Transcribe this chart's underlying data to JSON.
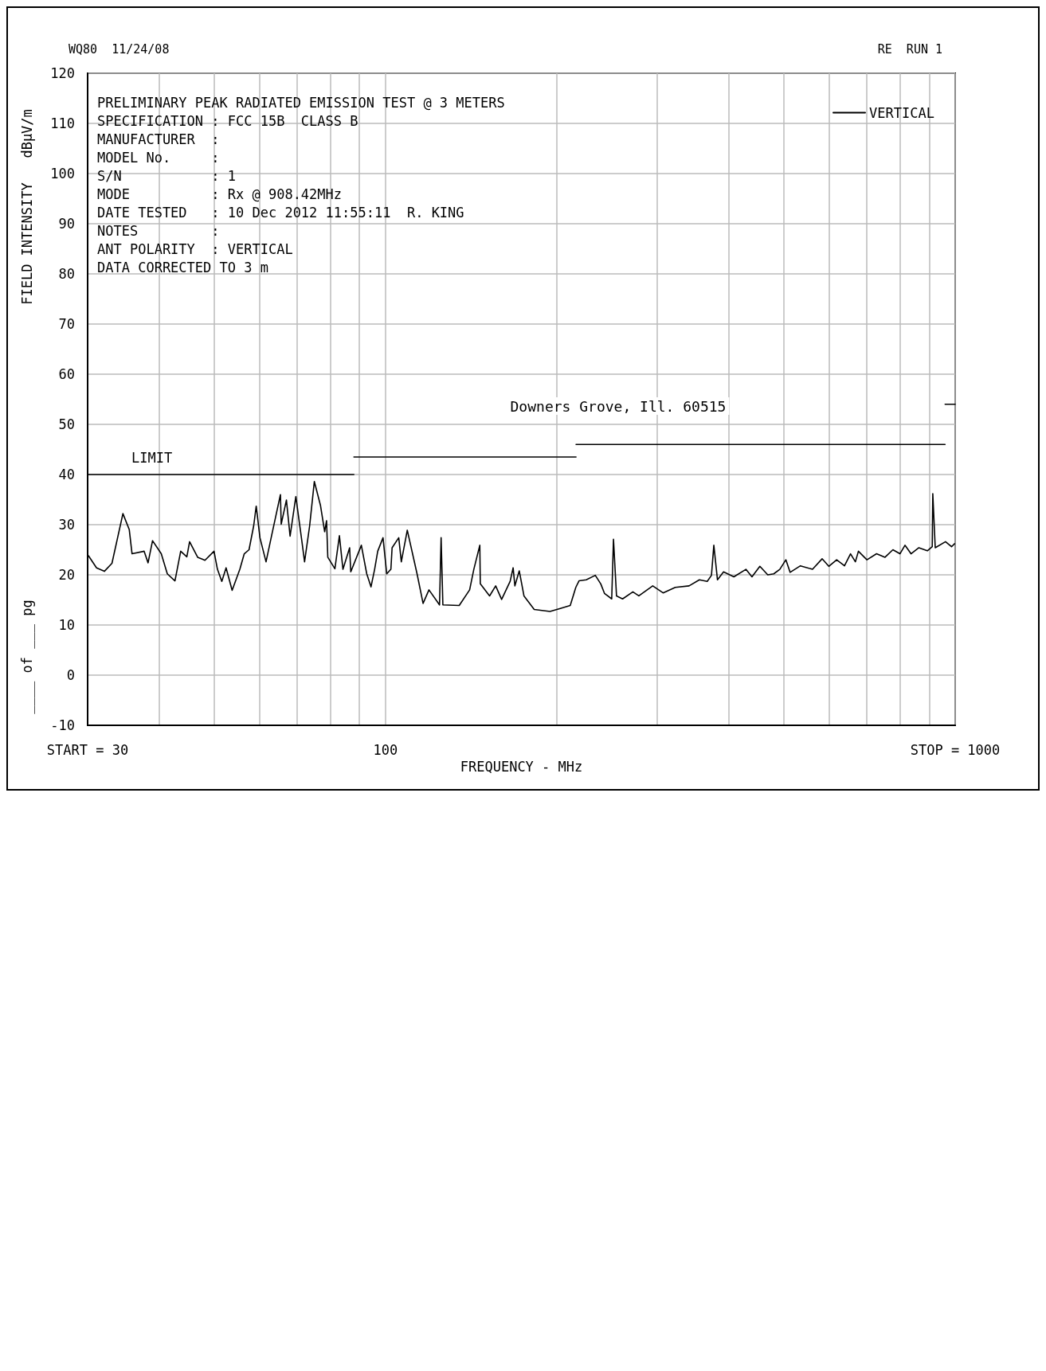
{
  "chart_data": {
    "type": "line",
    "subtitle": "Downers Grove, Ill. 60515",
    "xlabel": "FREQUENCY - MHz",
    "ylabel": "FIELD INTENSITY   dBµV/m",
    "annotations": [
      "WQ80  11/24/08",
      "RE  RUN 1",
      "PRELIMINARY PEAK RADIATED EMISSION TEST @ 3 METERS",
      "SPECIFICATION : FCC 15B  CLASS B",
      "MANUFACTURER  :",
      "MODEL No.     :",
      "S/N           : 1",
      "MODE          : Rx @ 908.42MHz",
      "DATE TESTED   : 10 Dec 2012 11:55:11  R. KING",
      "NOTES         :",
      "ANT POLARITY  : VERTICAL",
      "DATA CORRECTED TO 3 m",
      "____ of ___ pg"
    ],
    "log": "x",
    "grid": true,
    "legend": "top right",
    "xlim": [
      30,
      1000
    ],
    "xticks": [
      {
        "value": 30,
        "label": "START = 30"
      },
      {
        "value": 40,
        "label": null
      },
      {
        "value": 50,
        "label": null
      },
      {
        "value": 60,
        "label": null
      },
      {
        "value": 70,
        "label": null
      },
      {
        "value": 80,
        "label": null
      },
      {
        "value": 90,
        "label": null
      },
      100,
      {
        "value": 200,
        "label": null
      },
      {
        "value": 300,
        "label": null
      },
      {
        "value": 400,
        "label": null
      },
      {
        "value": 500,
        "label": null
      },
      {
        "value": 600,
        "label": null
      },
      {
        "value": 700,
        "label": null
      },
      {
        "value": 800,
        "label": null
      },
      {
        "value": 900,
        "label": null
      },
      {
        "value": 1000,
        "label": "STOP = 1000"
      }
    ],
    "ylim": [
      -10,
      120
    ],
    "yticks": [
      -10,
      0,
      10,
      20,
      30,
      40,
      50,
      60,
      70,
      80,
      90,
      100,
      110,
      120
    ],
    "series": [
      {
        "name": "VERTICAL",
        "color": "#000000",
        "x": [
          30.1,
          31.1,
          32.1,
          33.1,
          34.6,
          35.5,
          35.9,
          37.7,
          38.3,
          39.0,
          40.4,
          41.4,
          42.7,
          43.7,
          44.8,
          45.3,
          46.8,
          48.2,
          50.0,
          50.7,
          51.6,
          52.5,
          53.8,
          55.5,
          56.5,
          57.6,
          58.7,
          59.3,
          60.2,
          61.7,
          63.1,
          65.4,
          65.6,
          67.0,
          68.0,
          69.6,
          71.3,
          72.1,
          73.6,
          75.0,
          76.9,
          78.2,
          78.8,
          79.2,
          81.5,
          83.0,
          84.2,
          86.5,
          86.9,
          90.7,
          92.7,
          94.3,
          95.7,
          96.9,
          99.0,
          100.5,
          102.2,
          102.7,
          105.5,
          106.6,
          109.2,
          113.6,
          116.4,
          119.2,
          124.4,
          125.2,
          126.1,
          134.7,
          140.5,
          142.9,
          146.4,
          146.7,
          152.3,
          156.1,
          159.9,
          165.5,
          167.5,
          168.7,
          171.7,
          175.0,
          182.4,
          194.4,
          202.7,
          211,
          215.8,
          218.6,
          225.1,
          233.5,
          238.7,
          242.3,
          249.5,
          251.3,
          254.4,
          260.7,
          271.8,
          278.4,
          294.5,
          307.1,
          322.6,
          341.1,
          355.6,
          367.1,
          373.4,
          377.0,
          382.6,
          392.1,
          408.8,
          429.2,
          439.8,
          454.1,
          468.8,
          480.3,
          492.2,
          504.4,
          513.1,
          535.0,
          561.8,
          584.0,
          600,
          619.4,
          639.3,
          655.1,
          668.1,
          676.3,
          700,
          727.8,
          753.1,
          777.4,
          800,
          816.3,
          836.5,
          863.5,
          893.6,
          911.4,
          913.5,
          922.5,
          961.6,
          985.4,
          997.6
        ],
        "values": [
          23.8,
          21.4,
          20.7,
          22.3,
          32.2,
          29.0,
          24.2,
          24.7,
          22.4,
          26.8,
          24.2,
          20.2,
          18.8,
          24.7,
          23.6,
          26.6,
          23.5,
          22.9,
          24.7,
          21.1,
          18.7,
          21.4,
          16.9,
          21.1,
          24.2,
          25.0,
          29.8,
          33.7,
          27.4,
          22.6,
          27.8,
          36.0,
          30.1,
          34.9,
          27.7,
          35.6,
          26.8,
          22.6,
          29.8,
          38.6,
          33.8,
          28.6,
          30.8,
          23.5,
          21.2,
          27.8,
          21.1,
          25.4,
          20.6,
          25.9,
          20.2,
          17.6,
          21.1,
          24.7,
          27.4,
          20.2,
          21.1,
          25.4,
          27.4,
          22.6,
          28.9,
          20.2,
          14.3,
          17.0,
          14.0,
          27.4,
          14.0,
          13.9,
          17.0,
          21.1,
          25.9,
          18.2,
          15.8,
          17.8,
          15.1,
          18.7,
          21.4,
          17.8,
          20.8,
          15.8,
          13.1,
          12.7,
          13.3,
          13.9,
          17.5,
          18.8,
          19.0,
          19.9,
          18.2,
          16.3,
          15.2,
          27.1,
          15.8,
          15.2,
          16.6,
          15.8,
          17.8,
          16.4,
          17.5,
          17.8,
          19.0,
          18.7,
          19.9,
          25.9,
          19.0,
          20.6,
          19.6,
          21.1,
          19.6,
          21.7,
          20.0,
          20.2,
          21.1,
          23.0,
          20.5,
          21.8,
          21.1,
          23.2,
          21.7,
          23.0,
          21.8,
          24.2,
          22.6,
          24.7,
          23.0,
          24.2,
          23.5,
          25.0,
          24.2,
          25.9,
          24.2,
          25.4,
          24.8,
          25.6,
          36.2,
          25.4,
          26.6,
          25.6,
          26.2
        ]
      },
      {
        "name": "LIMIT",
        "color": "#000000",
        "x": [
          30,
          88
        ],
        "values": [
          40,
          40
        ]
      },
      {
        "color": "#000000",
        "x": [
          88,
          216
        ],
        "values": [
          43.5,
          43.5
        ]
      },
      {
        "color": "#000000",
        "x": [
          216,
          960
        ],
        "values": [
          46,
          46
        ]
      },
      {
        "color": "#000000",
        "x": [
          960,
          1000
        ],
        "values": [
          54,
          54
        ]
      }
    ]
  }
}
